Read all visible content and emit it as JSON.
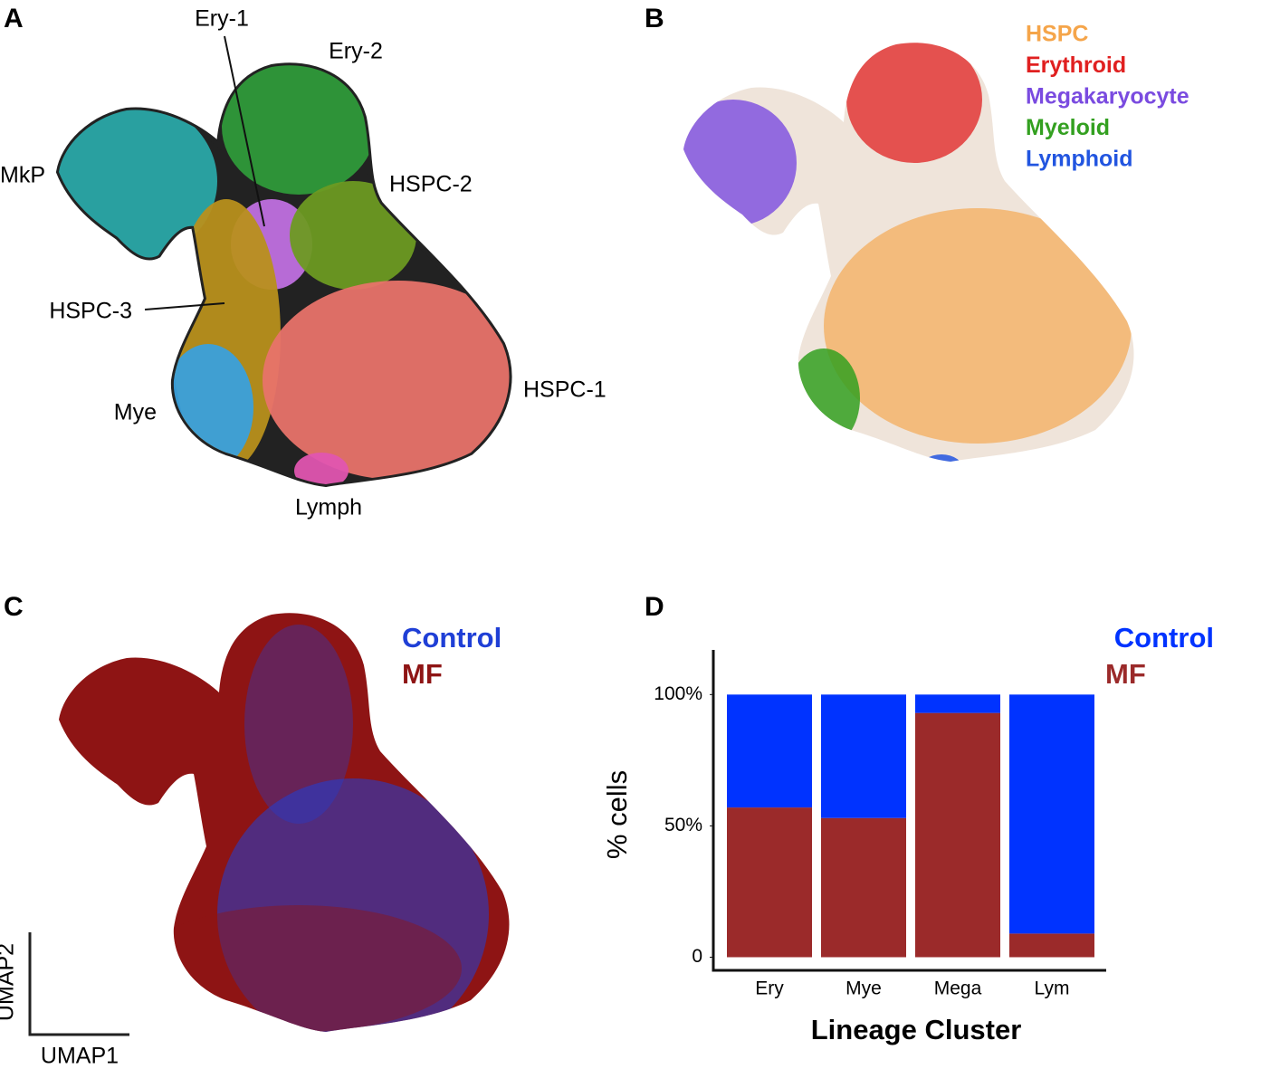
{
  "chart_data": [
    {
      "type": "umap",
      "panel": "A",
      "series": [
        {
          "name": "Ery-1",
          "color": "#c070e0"
        },
        {
          "name": "Ery-2",
          "color": "#2f9a3a"
        },
        {
          "name": "MkP",
          "color": "#2aa8a8"
        },
        {
          "name": "HSPC-2",
          "color": "#6d9a22"
        },
        {
          "name": "HSPC-3",
          "color": "#b8901c"
        },
        {
          "name": "HSPC-1",
          "color": "#e8736a"
        },
        {
          "name": "Mye",
          "color": "#3aa0dc"
        },
        {
          "name": "Lymph",
          "color": "#e055b0"
        }
      ]
    },
    {
      "type": "umap",
      "panel": "B",
      "series": [
        {
          "name": "HSPC",
          "color": "#f5a54a"
        },
        {
          "name": "Erythroid",
          "color": "#e02020"
        },
        {
          "name": "Megakaryocyte",
          "color": "#7a4be0"
        },
        {
          "name": "Myeloid",
          "color": "#33a020"
        },
        {
          "name": "Lymphoid",
          "color": "#2255e0"
        }
      ]
    },
    {
      "type": "umap",
      "panel": "C",
      "xlabel": "UMAP1",
      "ylabel": "UMAP2",
      "series": [
        {
          "name": "Control",
          "color": "#1f3fd6"
        },
        {
          "name": "MF",
          "color": "#8e1414"
        }
      ]
    },
    {
      "type": "stacked_bar",
      "panel": "D",
      "xlabel": "Lineage Cluster",
      "ylabel": "% cells",
      "categories": [
        "Ery",
        "Mye",
        "Mega",
        "Lym"
      ],
      "series": [
        {
          "name": "Control",
          "color": "#0033ff",
          "values": [
            43,
            47,
            7,
            91
          ]
        },
        {
          "name": "MF",
          "color": "#9b2a2a",
          "values": [
            57,
            53,
            93,
            9
          ]
        }
      ],
      "ylim": [
        -5,
        117
      ],
      "yticks": [
        0,
        {
          "value": 50,
          "label": "50%"
        },
        {
          "value": 100,
          "label": "100%"
        }
      ]
    }
  ]
}
